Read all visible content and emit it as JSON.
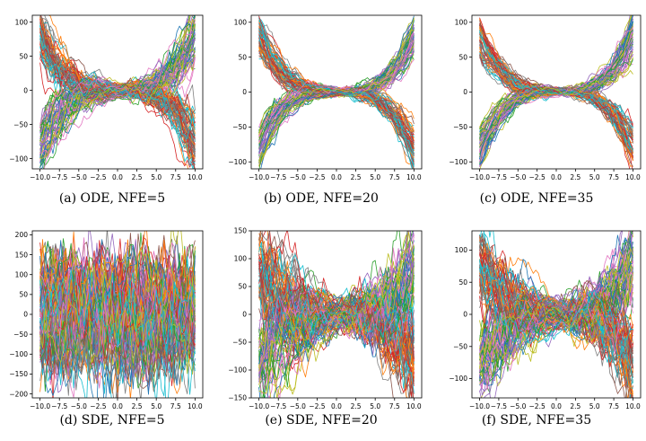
{
  "chart_data": [
    {
      "type": "line",
      "caption": "(a) ODE, NFE=5",
      "xlim": [
        -11,
        11
      ],
      "ylim": [
        -115,
        110
      ],
      "xticks": [
        -10,
        -7.5,
        -5,
        -2.5,
        0,
        2.5,
        5,
        7.5,
        10
      ],
      "xtick_labels": [
        "−10.0",
        "−7.5",
        "−5.0",
        "−2.5",
        "0.0",
        "2.5",
        "5.0",
        "7.5",
        "10.0"
      ],
      "yticks": [
        -100,
        -50,
        0,
        50,
        100
      ],
      "ytick_labels": [
        "−100",
        "−50",
        "0",
        "50",
        "100"
      ],
      "x_range": [
        -10,
        10
      ],
      "pattern": "cubic",
      "amplitude": 105,
      "noise": 8,
      "n_series": 120,
      "seed": 11,
      "grid": false,
      "legend": "none"
    },
    {
      "type": "line",
      "caption": "(b) ODE, NFE=20",
      "xlim": [
        -11,
        11
      ],
      "ylim": [
        -110,
        110
      ],
      "xticks": [
        -10,
        -7.5,
        -5,
        -2.5,
        0,
        2.5,
        5,
        7.5,
        10
      ],
      "xtick_labels": [
        "−10.0",
        "−7.5",
        "−5.0",
        "−2.5",
        "0.0",
        "2.5",
        "5.0",
        "7.5",
        "10.0"
      ],
      "yticks": [
        -100,
        -50,
        0,
        50,
        100
      ],
      "ytick_labels": [
        "−100",
        "−50",
        "0",
        "50",
        "100"
      ],
      "x_range": [
        -10,
        10
      ],
      "pattern": "cubic",
      "amplitude": 102,
      "noise": 4,
      "n_series": 120,
      "seed": 23,
      "grid": false,
      "legend": "none"
    },
    {
      "type": "line",
      "caption": "(c) ODE, NFE=35",
      "xlim": [
        -11,
        11
      ],
      "ylim": [
        -110,
        110
      ],
      "xticks": [
        -10,
        -7.5,
        -5,
        -2.5,
        0,
        2.5,
        5,
        7.5,
        10
      ],
      "xtick_labels": [
        "−10.0",
        "−7.5",
        "−5.0",
        "−2.5",
        "0.0",
        "2.5",
        "5.0",
        "7.5",
        "10.0"
      ],
      "yticks": [
        -100,
        -50,
        0,
        50,
        100
      ],
      "ytick_labels": [
        "−100",
        "−50",
        "0",
        "50",
        "100"
      ],
      "x_range": [
        -10,
        10
      ],
      "pattern": "cubic",
      "amplitude": 102,
      "noise": 4,
      "n_series": 120,
      "seed": 37,
      "grid": false,
      "legend": "none"
    },
    {
      "type": "line",
      "caption": "(d) SDE, NFE=5",
      "xlim": [
        -11,
        11
      ],
      "ylim": [
        -210,
        210
      ],
      "xticks": [
        -10,
        -7.5,
        -5,
        -2.5,
        0,
        2.5,
        5,
        7.5,
        10
      ],
      "xtick_labels": [
        "−10.0",
        "−7.5",
        "−5.0",
        "−2.5",
        "0.0",
        "2.5",
        "5.0",
        "7.5",
        "10.0"
      ],
      "yticks": [
        -200,
        -150,
        -100,
        -50,
        0,
        50,
        100,
        150,
        200
      ],
      "ytick_labels": [
        "−200",
        "−150",
        "−100",
        "−50",
        "0",
        "50",
        "100",
        "150",
        "200"
      ],
      "x_range": [
        -10,
        10
      ],
      "pattern": "band",
      "amplitude": 100,
      "noise": 45,
      "n_series": 110,
      "seed": 41,
      "grid": false,
      "legend": "none"
    },
    {
      "type": "line",
      "caption": "(e) SDE, NFE=20",
      "xlim": [
        -11,
        11
      ],
      "ylim": [
        -150,
        150
      ],
      "xticks": [
        -10,
        -7.5,
        -5,
        -2.5,
        0,
        2.5,
        5,
        7.5,
        10
      ],
      "xtick_labels": [
        "−10.0",
        "−7.5",
        "−5.0",
        "−2.5",
        "0.0",
        "2.5",
        "5.0",
        "7.5",
        "10.0"
      ],
      "yticks": [
        -150,
        -100,
        -50,
        0,
        50,
        100,
        150
      ],
      "ytick_labels": [
        "−150",
        "−100",
        "−50",
        "0",
        "50",
        "100",
        "150"
      ],
      "x_range": [
        -10,
        10
      ],
      "pattern": "cubic",
      "amplitude": 105,
      "noise": 22,
      "n_series": 120,
      "seed": 53,
      "grid": false,
      "legend": "none"
    },
    {
      "type": "line",
      "caption": "(f) SDE, NFE=35",
      "xlim": [
        -11,
        11
      ],
      "ylim": [
        -130,
        130
      ],
      "xticks": [
        -10,
        -7.5,
        -5,
        -2.5,
        0,
        2.5,
        5,
        7.5,
        10
      ],
      "xtick_labels": [
        "−10.0",
        "−7.5",
        "−5.0",
        "−2.5",
        "0.0",
        "2.5",
        "5.0",
        "7.5",
        "10.0"
      ],
      "yticks": [
        -100,
        -50,
        0,
        50,
        100
      ],
      "ytick_labels": [
        "−100",
        "−50",
        "0",
        "50",
        "100"
      ],
      "x_range": [
        -10,
        10
      ],
      "pattern": "cubic",
      "amplitude": 105,
      "noise": 16,
      "n_series": 120,
      "seed": 67,
      "grid": false,
      "legend": "none"
    }
  ],
  "colors": [
    "#1f77b4",
    "#ff7f0e",
    "#2ca02c",
    "#d62728",
    "#9467bd",
    "#8c564b",
    "#e377c2",
    "#7f7f7f",
    "#bcbd22",
    "#17becf"
  ]
}
